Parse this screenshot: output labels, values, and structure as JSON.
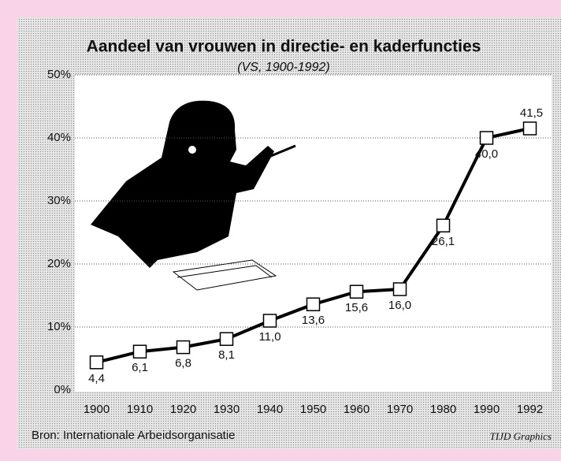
{
  "chart_data": {
    "type": "line",
    "title": "Aandeel van vrouwen in directie- en kaderfuncties",
    "subtitle": "(VS, 1900-1992)",
    "categories": [
      "1900",
      "1910",
      "1920",
      "1930",
      "1940",
      "1950",
      "1960",
      "1970",
      "1980",
      "1990",
      "1992"
    ],
    "series": [
      {
        "name": "Aandeel vrouwen",
        "color": "#000000",
        "values": [
          4.4,
          6.1,
          6.8,
          8.1,
          11.0,
          13.6,
          15.6,
          16.0,
          26.1,
          40.0,
          41.5
        ],
        "value_labels": [
          "4,4",
          "6,1",
          "6,8",
          "8,1",
          "11,0",
          "13,6",
          "15,6",
          "16,0",
          "26,1",
          "40,0",
          "41,5"
        ]
      }
    ],
    "ylim": [
      0,
      50
    ],
    "yticks": [
      {
        "value": 0,
        "label": "0%"
      },
      {
        "value": 10,
        "label": "10%"
      },
      {
        "value": 20,
        "label": "20%"
      },
      {
        "value": 30,
        "label": "30%"
      },
      {
        "value": 40,
        "label": "40%"
      },
      {
        "value": 50,
        "label": "50%"
      }
    ],
    "grid": true,
    "source": "Bron: Internationale Arbeidsorganisatie",
    "credit": "TIJD Graphics"
  }
}
